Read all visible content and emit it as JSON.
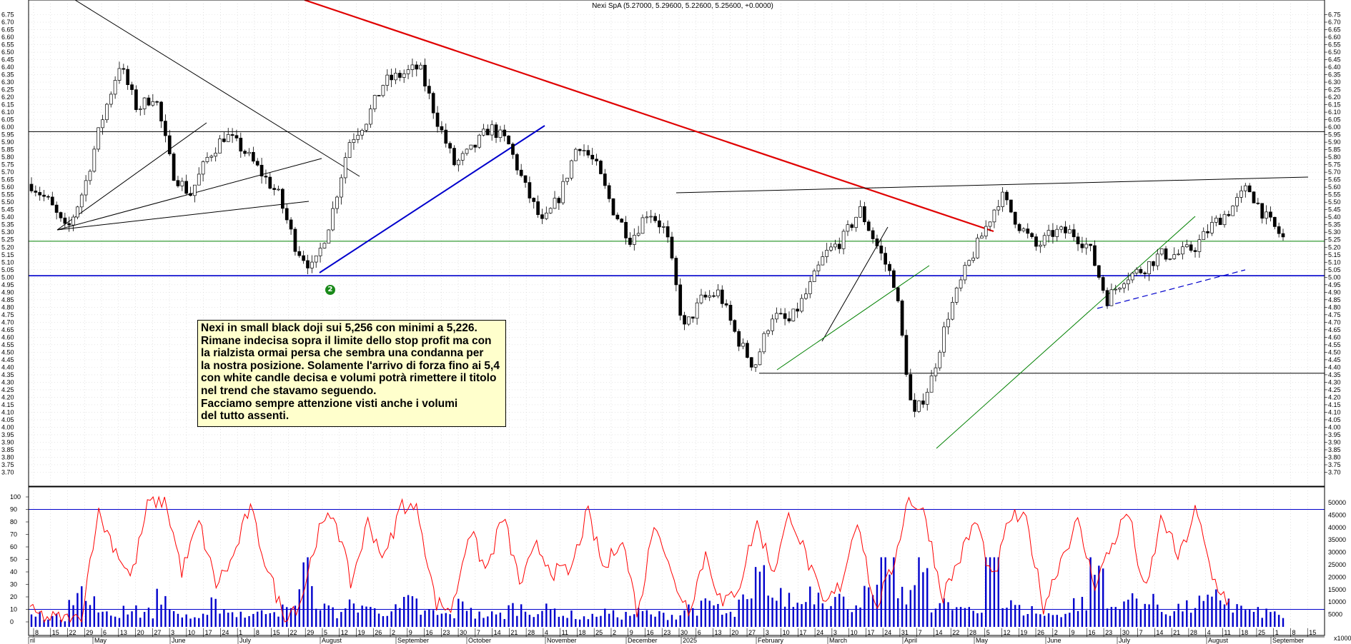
{
  "chart_data": [
    {
      "type": "candlestick",
      "title": "Nexi SpA (5.27000, 5.29600, 5.22600, 5.25600, +0.0000)",
      "ylim": [
        3.65,
        6.8
      ],
      "y_ticks": [
        "6.75",
        "6.70",
        "6.65",
        "6.60",
        "6.55",
        "6.50",
        "6.45",
        "6.40",
        "6.35",
        "6.30",
        "6.25",
        "6.20",
        "6.15",
        "6.10",
        "6.05",
        "6.00",
        "5.95",
        "5.90",
        "5.85",
        "5.80",
        "5.75",
        "5.70",
        "5.65",
        "5.60",
        "5.55",
        "5.50",
        "5.45",
        "5.40",
        "5.35",
        "5.30",
        "5.25",
        "5.20",
        "5.15",
        "5.10",
        "5.05",
        "5.00",
        "4.95",
        "4.90",
        "4.85",
        "4.80",
        "4.75",
        "4.70",
        "4.65",
        "4.60",
        "4.55",
        "4.50",
        "4.45",
        "4.40",
        "4.35",
        "4.30",
        "4.25",
        "4.20",
        "4.15",
        "4.10",
        "4.05",
        "4.00",
        "3.95",
        "3.90",
        "3.85",
        "3.80",
        "3.75",
        "3.70"
      ],
      "anchor_closes": [
        5.62,
        5.5,
        5.3,
        5.6,
        6.05,
        6.42,
        6.12,
        6.22,
        5.7,
        5.55,
        5.8,
        5.95,
        5.85,
        5.7,
        5.55,
        5.2,
        5.05,
        5.4,
        5.9,
        6.05,
        6.3,
        6.35,
        6.4,
        6.05,
        5.75,
        5.85,
        6.0,
        5.9,
        5.6,
        5.35,
        5.55,
        5.9,
        5.75,
        5.45,
        5.25,
        5.45,
        5.3,
        4.65,
        4.85,
        4.9,
        4.6,
        4.4,
        4.75,
        4.7,
        4.9,
        5.15,
        5.25,
        5.45,
        5.2,
        4.95,
        4.05,
        4.3,
        4.75,
        5.05,
        5.3,
        5.55,
        5.35,
        5.2,
        5.3,
        5.3,
        5.2,
        4.85,
        5.0,
        5.05,
        5.15,
        5.15,
        5.2,
        5.35,
        5.45,
        5.6,
        5.4,
        5.26
      ],
      "horizontal_levels": [
        {
          "value": 5.97,
          "color": "#000000"
        },
        {
          "value": 5.24,
          "color": "#008000"
        },
        {
          "value": 5.01,
          "color": "#0000cc"
        },
        {
          "value": 4.36,
          "color": "#000000"
        }
      ],
      "markers": [
        {
          "label": "2",
          "color": "#1a8a1a"
        }
      ],
      "x_tick_labels": [
        "8",
        "15",
        "22",
        "29",
        "6",
        "13",
        "20",
        "27",
        "3",
        "10",
        "17",
        "24",
        "1",
        "8",
        "15",
        "22",
        "29",
        "5",
        "12",
        "19",
        "26",
        "2",
        "9",
        "16",
        "23",
        "30",
        "7",
        "14",
        "21",
        "28",
        "4",
        "11",
        "18",
        "25",
        "2",
        "9",
        "16",
        "23",
        "30",
        "6",
        "13",
        "20",
        "27",
        "3",
        "10",
        "17",
        "24",
        "3",
        "10",
        "17",
        "24",
        "31",
        "7",
        "14",
        "22",
        "28",
        "5",
        "12",
        "19",
        "26",
        "2",
        "9",
        "16",
        "23",
        "30",
        "7",
        "14",
        "21",
        "28",
        "4",
        "11",
        "18",
        "25",
        "1",
        "8",
        "15"
      ],
      "x_month_labels": [
        "ril",
        "May",
        "June",
        "July",
        "August",
        "September",
        "October",
        "November",
        "December",
        "2025",
        "February",
        "March",
        "April",
        "May",
        "June",
        "July",
        "August",
        "September"
      ]
    },
    {
      "type": "line",
      "series": [
        {
          "values": [
            8,
            3,
            2,
            1,
            88,
            60,
            35,
            95,
            98,
            40,
            80,
            30,
            50,
            92,
            45,
            5,
            15,
            70,
            88,
            30,
            80,
            50,
            95,
            88,
            15,
            10,
            75,
            40,
            85,
            30,
            60,
            40,
            40,
            88,
            40,
            70,
            5,
            85,
            35,
            10,
            55,
            12,
            30,
            80,
            40,
            88,
            50,
            12,
            30,
            85,
            10,
            40,
            100,
            85,
            20,
            50,
            82,
            30,
            85,
            80,
            12,
            50,
            80,
            30,
            60,
            90,
            20,
            85,
            50,
            90,
            35,
            15
          ]
        }
      ],
      "ylim": [
        0,
        100
      ],
      "y_ticks": [
        "100",
        "90",
        "80",
        "70",
        "60",
        "50",
        "40",
        "30",
        "20",
        "10",
        "0"
      ],
      "reference_levels": [
        90,
        10
      ]
    },
    {
      "type": "bar",
      "series": [
        {
          "values": [
            5000,
            4000,
            15000,
            10000,
            5000,
            8000,
            6000,
            12000,
            5000,
            4000,
            9000,
            6000,
            5000,
            8000,
            7000,
            25000,
            8000,
            6000,
            9000,
            7000,
            7000,
            10000,
            6000,
            5000,
            9000,
            5000,
            5000,
            8000,
            7000,
            7000,
            5000,
            4000,
            6000,
            5000,
            6000,
            5000,
            5000,
            8000,
            9000,
            5000,
            10000,
            20000,
            12000,
            10000,
            15000,
            12000,
            10000,
            13000,
            30000,
            12000,
            25000,
            10000,
            8000,
            6000,
            50000,
            9000,
            7000,
            5000,
            6000,
            10000,
            24000,
            8000,
            12000,
            10000,
            7000,
            8000,
            10000,
            12000,
            8000,
            6000,
            6000,
            4000
          ]
        }
      ],
      "ylim": [
        0,
        52000
      ],
      "y_ticks": [
        "50000",
        "45000",
        "40000",
        "35000",
        "30000",
        "25000",
        "20000",
        "15000",
        "10000",
        "5000"
      ],
      "unit_label": "x1000"
    }
  ],
  "annotation": {
    "lines": [
      "Nexi in small black doji sui 5,256 con minimi a 5,226.",
      "Rimane indecisa sopra il limite dello stop profit ma con",
      "la rialzista ormai persa che sembra una condanna per",
      "la nostra posizione. Solamente l'arrivo di forza fino ai 5,4",
      "con white candle decisa e volumi potrà rimettere il titolo",
      "nel trend che stavamo seguendo.",
      "Facciamo sempre attenzione visti anche i volumi",
      "del tutto assenti."
    ]
  },
  "colors": {
    "up_candle": "#ffffff",
    "down_candle": "#000000",
    "red_trendline": "#e00000",
    "blue_trendline": "#0000cc",
    "green_trendline": "#008000",
    "rsi_line": "#ff0000",
    "volume": "#0000cc",
    "grid": "#b0b0b0"
  }
}
